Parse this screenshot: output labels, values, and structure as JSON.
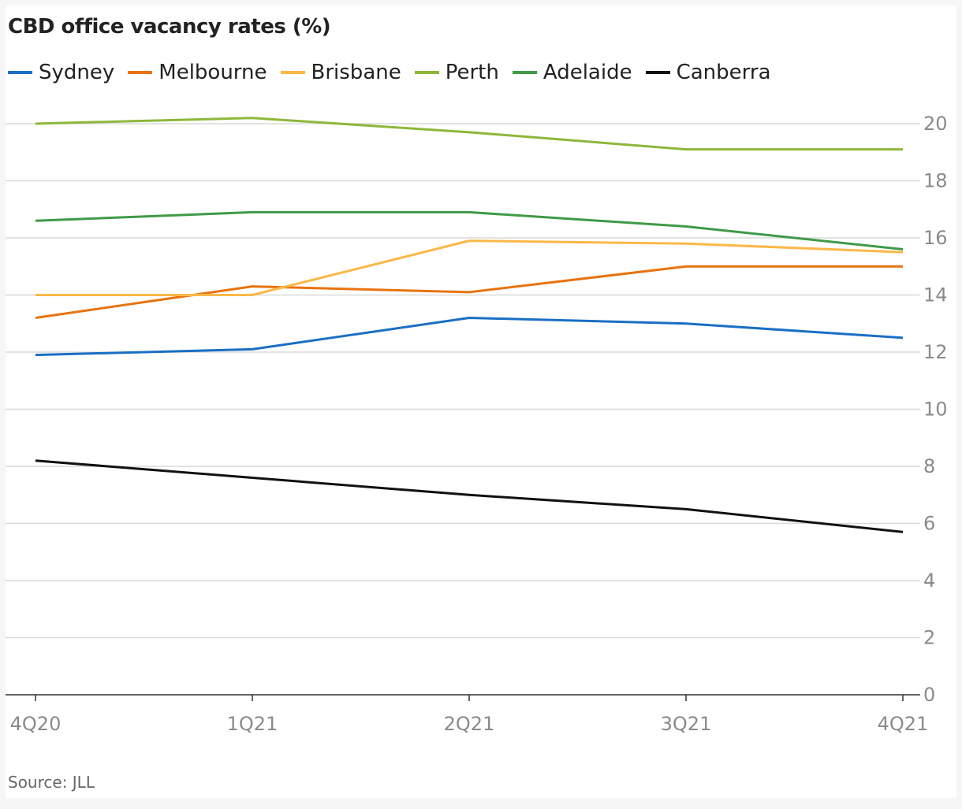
{
  "chart_data": {
    "type": "line",
    "title": "CBD office vacancy rates (%)",
    "x": [
      "4Q20",
      "1Q21",
      "2Q21",
      "3Q21",
      "4Q21"
    ],
    "ylim": [
      0,
      20
    ],
    "yticks": [
      0,
      2,
      4,
      6,
      8,
      10,
      12,
      14,
      16,
      18,
      20
    ],
    "y_axis_position": "right",
    "grid": true,
    "legend_position": "top-left",
    "series": [
      {
        "name": "Sydney",
        "color": "#1a6fc4",
        "values": [
          11.9,
          12.1,
          13.2,
          13.0,
          12.5
        ]
      },
      {
        "name": "Melbourne",
        "color": "#e8730f",
        "values": [
          13.2,
          14.3,
          14.1,
          15.0,
          15.0
        ]
      },
      {
        "name": "Brisbane",
        "color": "#fbb848",
        "values": [
          14.0,
          14.0,
          15.9,
          15.8,
          15.5
        ]
      },
      {
        "name": "Perth",
        "color": "#8db83a",
        "values": [
          20.0,
          20.2,
          19.7,
          19.1,
          19.1
        ]
      },
      {
        "name": "Adelaide",
        "color": "#3f9a48",
        "values": [
          16.6,
          16.9,
          16.9,
          16.4,
          15.6
        ]
      },
      {
        "name": "Canberra",
        "color": "#111111",
        "values": [
          8.2,
          7.6,
          7.0,
          6.5,
          5.7
        ]
      }
    ]
  },
  "source": "Source: JLL"
}
